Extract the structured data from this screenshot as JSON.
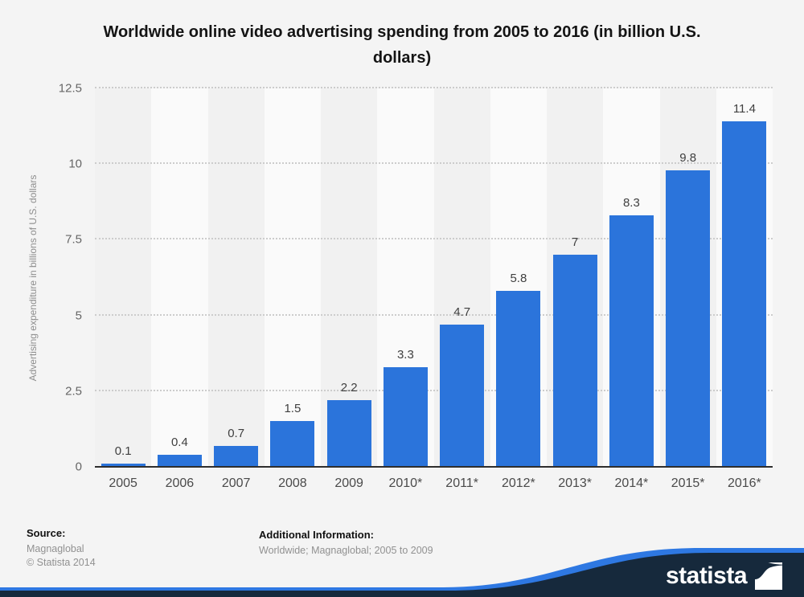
{
  "title": "Worldwide online video advertising spending from 2005 to 2016 (in billion U.S. dollars)",
  "chart_data": {
    "type": "bar",
    "categories": [
      "2005",
      "2006",
      "2007",
      "2008",
      "2009",
      "2010*",
      "2011*",
      "2012*",
      "2013*",
      "2014*",
      "2015*",
      "2016*"
    ],
    "values": [
      0.1,
      0.4,
      0.7,
      1.5,
      2.2,
      3.3,
      4.7,
      5.8,
      7,
      8.3,
      9.8,
      11.4
    ],
    "title": "Worldwide online video advertising spending from 2005 to 2016 (in billion U.S. dollars)",
    "xlabel": "",
    "ylabel": "Advertising expenditure in billions of U.S. dollars",
    "ylim": [
      0,
      12.5
    ],
    "yticks": [
      0,
      2.5,
      5,
      7.5,
      10,
      12.5
    ],
    "grid": "horizontal-dotted",
    "legend": "none",
    "bar_color": "#2b74db",
    "value_labels": [
      "0.1",
      "0.4",
      "0.7",
      "1.5",
      "2.2",
      "3.3",
      "4.7",
      "5.8",
      "7",
      "8.3",
      "9.8",
      "11.4"
    ]
  },
  "footer": {
    "source_label": "Source:",
    "source_value": "Magnaglobal",
    "copyright": "© Statista 2014",
    "additional_label": "Additional Information:",
    "additional_value": "Worldwide; Magnaglobal; 2005 to 2009"
  },
  "branding": {
    "logo_text": "statista",
    "wave_dark_color": "#16293c",
    "wave_blue_color": "#2e78e2"
  }
}
